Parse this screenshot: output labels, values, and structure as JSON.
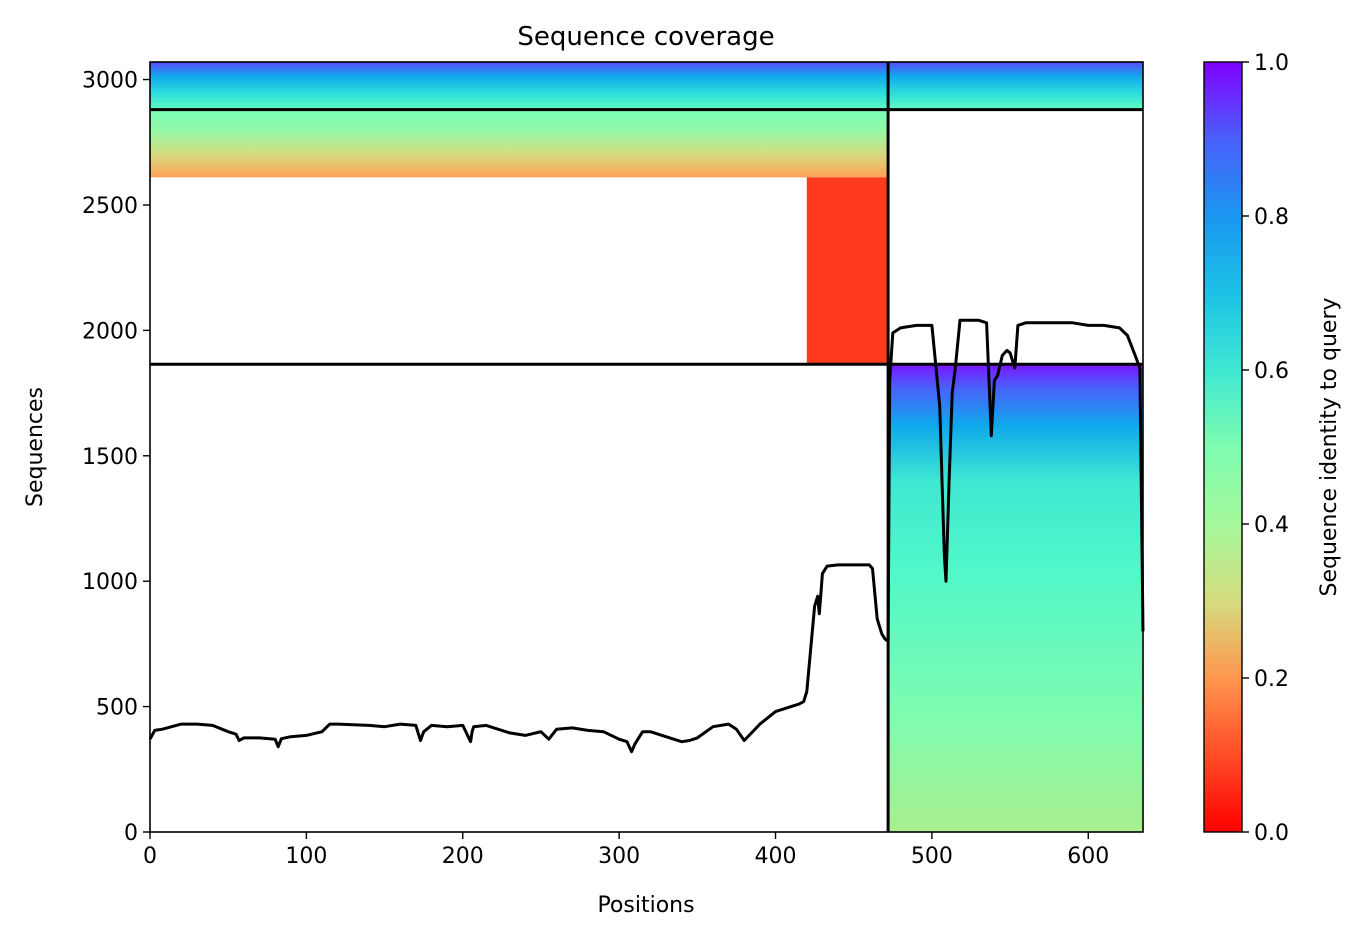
{
  "chart_data": {
    "type": "heatmap",
    "title": "Sequence coverage",
    "xlabel": "Positions",
    "ylabel": "Sequences",
    "xlim": [
      0,
      635
    ],
    "ylim": [
      0,
      3070
    ],
    "x_ticks": [
      0,
      100,
      200,
      300,
      400,
      500,
      600
    ],
    "y_ticks": [
      0,
      500,
      1000,
      1500,
      2000,
      2500,
      3000
    ],
    "grid": false,
    "colorbar": {
      "label": "Sequence identity to query",
      "range": [
        0.0,
        1.0
      ],
      "ticks": [
        "0.0",
        "0.2",
        "0.4",
        "0.6",
        "0.8",
        "1.0"
      ],
      "colormap": "rainbow_r"
    },
    "block_boundaries": {
      "x_positions": [
        472
      ],
      "y_sequences": [
        1865,
        2880
      ]
    },
    "coverage_blocks": [
      {
        "x_range": [
          0,
          472
        ],
        "seq_range": [
          2880,
          3070
        ],
        "identity_range": [
          0.6,
          0.95
        ]
      },
      {
        "x_range": [
          472,
          635
        ],
        "seq_range": [
          2880,
          3070
        ],
        "identity_range": [
          0.6,
          0.95
        ]
      },
      {
        "x_range": [
          0,
          472
        ],
        "seq_range": [
          2610,
          2880
        ],
        "identity_range": [
          0.2,
          0.55
        ]
      },
      {
        "x_range": [
          420,
          472
        ],
        "seq_range": [
          1865,
          2610
        ],
        "identity_range": [
          0.02,
          0.08
        ]
      },
      {
        "x_range": [
          472,
          635
        ],
        "seq_range": [
          0,
          1865
        ],
        "identity_range": [
          0.4,
          1.0
        ]
      }
    ],
    "coverage_line": {
      "color": "#000000",
      "x": [
        0,
        3,
        8,
        20,
        30,
        40,
        50,
        55,
        57,
        60,
        70,
        80,
        82,
        84,
        90,
        100,
        110,
        115,
        120,
        140,
        150,
        160,
        170,
        173,
        175,
        180,
        190,
        200,
        205,
        206,
        207,
        215,
        230,
        240,
        250,
        255,
        260,
        270,
        280,
        290,
        300,
        305,
        308,
        310,
        315,
        320,
        330,
        340,
        345,
        350,
        360,
        370,
        375,
        380,
        390,
        400,
        410,
        415,
        418,
        420,
        425,
        427,
        428,
        429,
        430,
        433,
        440,
        450,
        460,
        462,
        465,
        468,
        470,
        472,
        473,
        475,
        480,
        490,
        500,
        505,
        507,
        508,
        509,
        511,
        513,
        515,
        518,
        520,
        530,
        535,
        538,
        540,
        542,
        545,
        548,
        550,
        553,
        555,
        560,
        570,
        580,
        590,
        600,
        610,
        620,
        625,
        630,
        633,
        635
      ],
      "y": [
        370,
        405,
        410,
        430,
        430,
        425,
        400,
        390,
        365,
        375,
        375,
        370,
        340,
        372,
        380,
        385,
        400,
        430,
        430,
        425,
        420,
        430,
        425,
        365,
        400,
        425,
        420,
        425,
        360,
        400,
        420,
        425,
        395,
        385,
        400,
        370,
        410,
        415,
        405,
        400,
        370,
        360,
        320,
        350,
        400,
        400,
        380,
        360,
        365,
        375,
        420,
        430,
        410,
        365,
        430,
        480,
        500,
        510,
        520,
        560,
        900,
        940,
        870,
        950,
        1030,
        1060,
        1065,
        1065,
        1065,
        1050,
        850,
        790,
        770,
        760,
        1800,
        1990,
        2010,
        2020,
        2020,
        1700,
        1300,
        1100,
        1000,
        1400,
        1750,
        1850,
        2040,
        2040,
        2040,
        2030,
        1580,
        1800,
        1820,
        1900,
        1920,
        1910,
        1850,
        2020,
        2030,
        2030,
        2030,
        2030,
        2020,
        2020,
        2010,
        1980,
        1900,
        1850,
        800
      ]
    }
  }
}
